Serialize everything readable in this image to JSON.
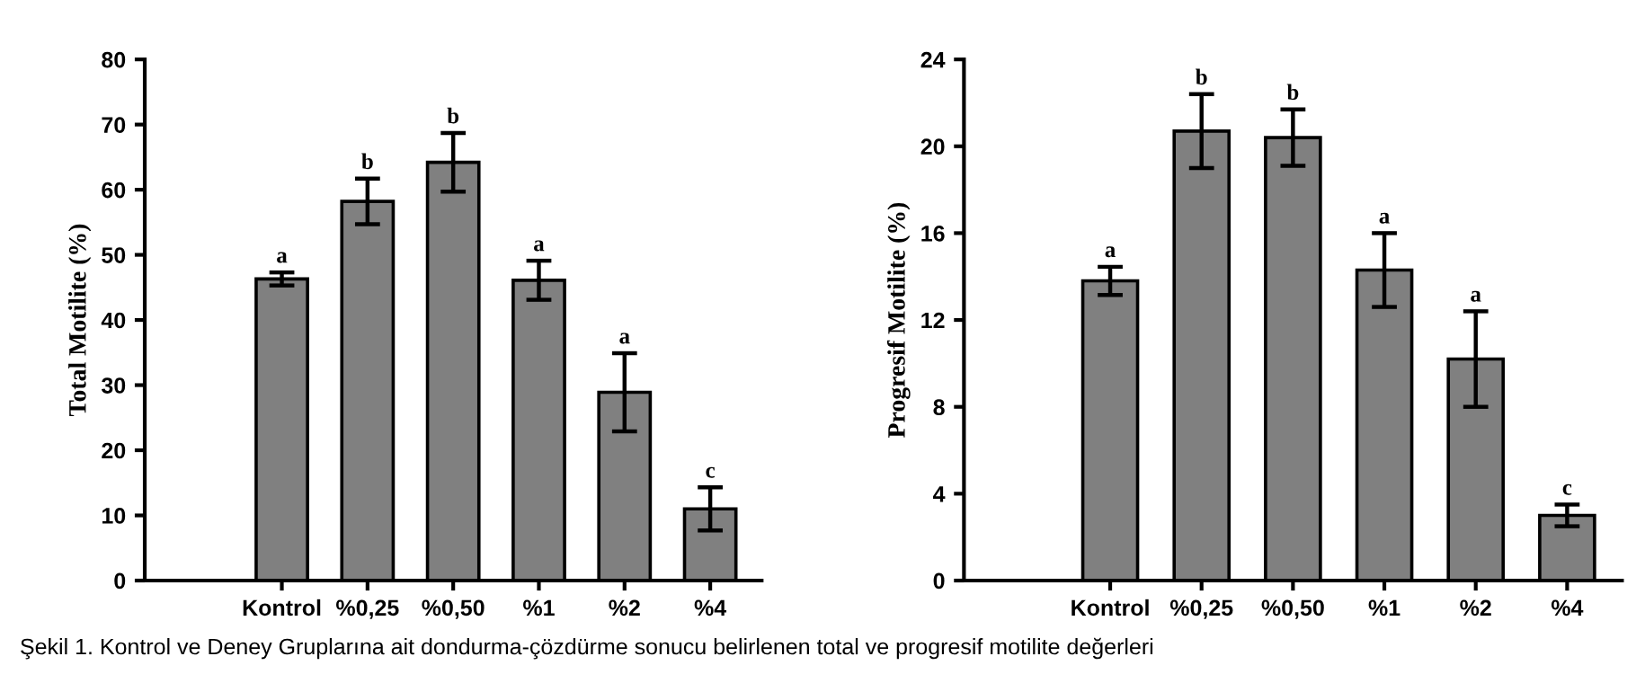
{
  "chart_data": [
    {
      "type": "bar",
      "ylabel": "Total Motilite (%)",
      "categories": [
        "Kontrol",
        "%0,25",
        "%0,50",
        "%1",
        "%2",
        "%4"
      ],
      "series": [
        {
          "color": "#808080",
          "values": [
            46.3,
            58.2,
            64.2,
            46.1,
            28.9,
            11.0
          ],
          "errors": [
            1.0,
            3.5,
            4.5,
            3.0,
            6.0,
            3.3
          ]
        }
      ],
      "ylim": [
        0,
        80
      ],
      "yticks": [
        0,
        10,
        20,
        30,
        40,
        50,
        60,
        70,
        80
      ],
      "grid": false,
      "legend": false,
      "annotations": [
        {
          "text": "a",
          "x": "Kontrol",
          "y": 47.3
        },
        {
          "text": "b",
          "x": "%0,25",
          "y": 61.7
        },
        {
          "text": "b",
          "x": "%0,50",
          "y": 68.7
        },
        {
          "text": "a",
          "x": "%1",
          "y": 49.1
        },
        {
          "text": "a",
          "x": "%2",
          "y": 34.9
        },
        {
          "text": "c",
          "x": "%4",
          "y": 14.3
        },
        "Şekil 1. Kontrol ve Deney Gruplarına ait dondurma-çözdürme sonucu belirlenen total ve progresif motilite değerleri"
      ]
    },
    {
      "type": "bar",
      "ylabel": "Progresif Motilite (%)",
      "categories": [
        "Kontrol",
        "%0,25",
        "%0,50",
        "%1",
        "%2",
        "%4"
      ],
      "series": [
        {
          "color": "#808080",
          "values": [
            13.8,
            20.7,
            20.4,
            14.3,
            10.2,
            3.0
          ],
          "errors": [
            0.65,
            1.7,
            1.3,
            1.7,
            2.2,
            0.5
          ]
        }
      ],
      "ylim": [
        0,
        24
      ],
      "yticks": [
        0,
        4,
        8,
        12,
        16,
        20,
        24
      ],
      "grid": false,
      "legend": false,
      "annotations": [
        {
          "text": "a",
          "x": "Kontrol",
          "y": 14.45
        },
        {
          "text": "b",
          "x": "%0,25",
          "y": 22.4
        },
        {
          "text": "b",
          "x": "%0,50",
          "y": 21.7
        },
        {
          "text": "a",
          "x": "%1",
          "y": 16.0
        },
        {
          "text": "a",
          "x": "%2",
          "y": 12.4
        },
        {
          "text": "c",
          "x": "%4",
          "y": 3.5
        }
      ]
    }
  ]
}
